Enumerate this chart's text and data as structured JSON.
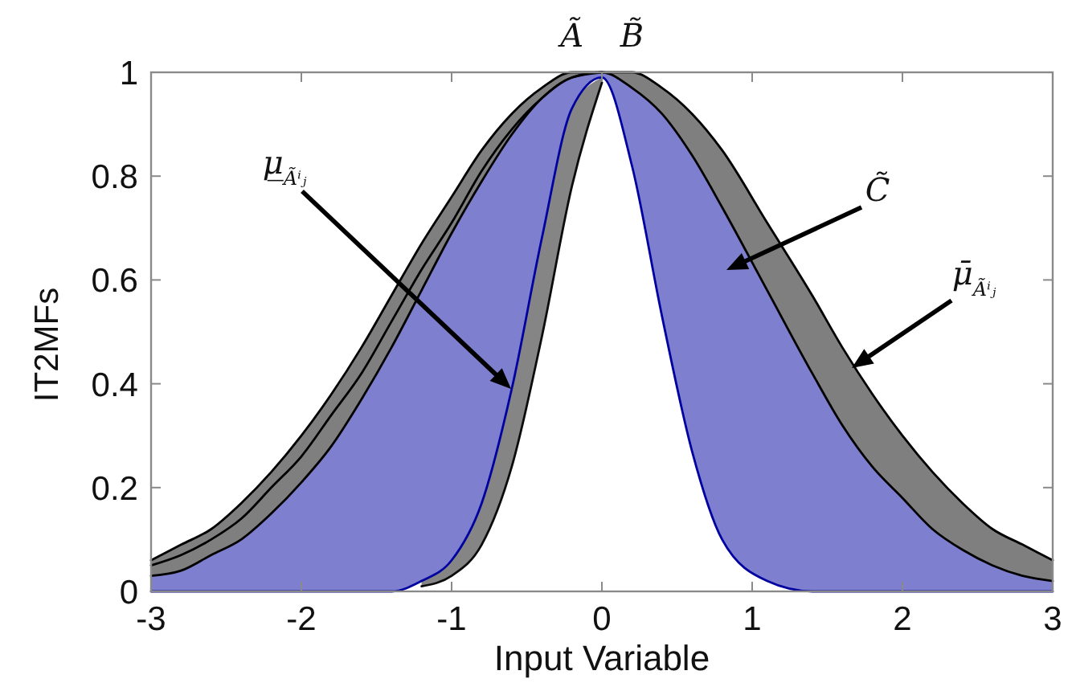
{
  "chart_data": {
    "type": "line",
    "xlabel": "Input Variable",
    "ylabel": "IT2MFs",
    "xlim": [
      -3,
      3
    ],
    "ylim": [
      0,
      1
    ],
    "xticks": [
      -3,
      -2,
      -1,
      0,
      1,
      2,
      3
    ],
    "yticks": [
      0,
      0.2,
      0.4,
      0.6,
      0.8,
      1
    ],
    "x": [
      -3,
      -2.8,
      -2.6,
      -2.4,
      -2.2,
      -2,
      -1.8,
      -1.6,
      -1.4,
      -1.2,
      -1,
      -0.8,
      -0.6,
      -0.4,
      -0.2,
      0,
      0.2,
      0.4,
      0.6,
      0.8,
      1.1,
      1.4,
      1.6,
      1.8,
      2,
      2.2,
      2.4,
      2.6,
      2.8,
      3
    ],
    "series": [
      {
        "color": "#000000",
        "values": [
          0.06,
          0.09,
          0.12,
          0.17,
          0.23,
          0.3,
          0.38,
          0.47,
          0.57,
          0.67,
          0.76,
          0.85,
          0.92,
          0.97,
          1,
          1,
          1,
          0.97,
          0.92,
          0.85,
          0.71,
          0.57,
          0.47,
          0.38,
          0.3,
          0.23,
          0.17,
          0.12,
          0.09,
          0.06
        ],
        "upper": [
          0.06,
          0.09,
          0.12,
          0.17,
          0.23,
          0.3,
          0.38,
          0.47,
          0.57,
          0.67,
          0.76,
          0.85,
          0.92,
          0.97,
          1,
          1,
          1,
          0.97,
          0.92,
          0.85,
          0.71,
          0.57,
          0.47,
          0.38,
          0.3,
          0.23,
          0.17,
          0.12,
          0.09,
          0.06
        ],
        "lower": [
          0.03,
          0.04,
          0.07,
          0.1,
          0.15,
          0.21,
          0.28,
          0.37,
          0.47,
          0.58,
          0.69,
          0.79,
          0.88,
          0.95,
          0.99,
          1,
          0.97,
          0.92,
          0.84,
          0.74,
          0.58,
          0.42,
          0.32,
          0.24,
          0.18,
          0.12,
          0.08,
          0.05,
          0.03,
          0.02
        ]
      },
      {
        "color": "#0000a0",
        "values": [
          0,
          0,
          0,
          0,
          0,
          0,
          0,
          0,
          0,
          0.02,
          0.06,
          0.17,
          0.39,
          0.68,
          0.93,
          0.99,
          0.82,
          0.53,
          0.27,
          0.1,
          0.02,
          0,
          0,
          0,
          0,
          0,
          0,
          0,
          0,
          0
        ],
        "lower": [
          0,
          0,
          0,
          0,
          0,
          0,
          0,
          0,
          0,
          0.02,
          0.06,
          0.17,
          0.39,
          0.68,
          0.93,
          0.99,
          0.82,
          0.53,
          0.27,
          0.1,
          0.02,
          0,
          0,
          0,
          0,
          0,
          0,
          0,
          0,
          0
        ],
        "upper": [
          0.03,
          0.04,
          0.07,
          0.1,
          0.15,
          0.21,
          0.28,
          0.37,
          0.47,
          0.58,
          0.69,
          0.79,
          0.88,
          0.95,
          0.99,
          1,
          0.97,
          0.92,
          0.84,
          0.74,
          0.58,
          0.42,
          0.32,
          0.24,
          0.18,
          0.12,
          0.08,
          0.05,
          0.03,
          0.02
        ]
      },
      {
        "color": "#0c0c0c",
        "values": [
          null,
          null,
          null,
          null,
          null,
          null,
          null,
          null,
          null,
          0.01,
          0.03,
          0.09,
          0.24,
          0.49,
          0.78,
          0.98,
          null,
          null,
          null,
          null,
          null,
          null,
          null,
          null,
          null,
          null,
          null,
          null,
          null,
          null
        ],
        "lower": [
          null,
          null,
          null,
          null,
          null,
          null,
          null,
          null,
          null,
          0.01,
          0.03,
          0.09,
          0.24,
          0.49,
          0.78,
          0.98,
          null,
          null,
          null,
          null,
          null,
          null,
          null,
          null,
          null,
          null,
          null,
          null,
          null,
          null
        ],
        "upper": [
          null,
          null,
          null,
          null,
          null,
          null,
          null,
          null,
          null,
          0.02,
          0.06,
          0.17,
          0.39,
          0.68,
          0.93,
          0.99,
          null,
          null,
          null,
          null,
          null,
          null,
          null,
          null,
          null,
          null,
          null,
          null,
          null,
          null
        ]
      },
      {
        "color": "#000000",
        "values": [
          0.05,
          0.07,
          0.1,
          0.14,
          0.2,
          0.26,
          0.34,
          0.42,
          0.52,
          0.62,
          0.71,
          0.81,
          0.89,
          0.95,
          0.99,
          1,
          null,
          null,
          null,
          null,
          null,
          null,
          null,
          null,
          null,
          null,
          null,
          null,
          null,
          null
        ]
      },
      {
        "color": "#000000",
        "values": [
          0.03,
          0.04,
          0.07,
          0.1,
          0.15,
          0.21,
          0.28,
          0.37,
          0.47,
          0.58,
          0.69,
          0.79,
          0.88,
          0.95,
          0.99,
          1,
          0.97,
          0.92,
          0.84,
          0.74,
          0.58,
          0.42,
          0.32,
          0.24,
          0.18,
          0.12,
          0.08,
          0.05,
          0.03,
          0.02
        ]
      }
    ],
    "annotations": [
      {
        "text": "Ã",
        "x": -0.2,
        "y": 1
      },
      {
        "text": "B̃",
        "x": 0.2,
        "y": 1
      },
      "μ̲$_{Ãⁱⱼ}$",
      "C̃",
      "μ̄$_{Ãⁱⱼ}$"
    ]
  }
}
